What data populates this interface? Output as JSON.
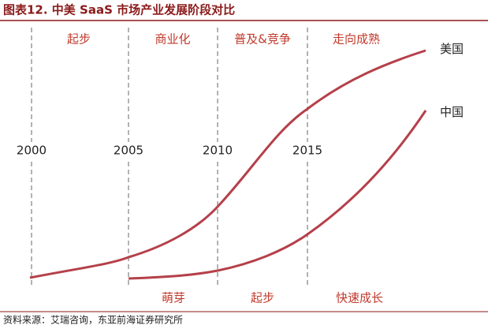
{
  "header": {
    "title": "图表12.  中美 SaaS 市场产业发展阶段对比"
  },
  "years": [
    "2000",
    "2005",
    "2010",
    "2015"
  ],
  "us_phases": [
    "起步",
    "商业化",
    "普及&竞争",
    "走向成熟"
  ],
  "china_phases": [
    "萌芽",
    "起步",
    "快速成长"
  ],
  "curves": [
    "美国",
    "中国"
  ],
  "source": "资料来源：艾瑞咨询，东亚前海证券研究所"
}
